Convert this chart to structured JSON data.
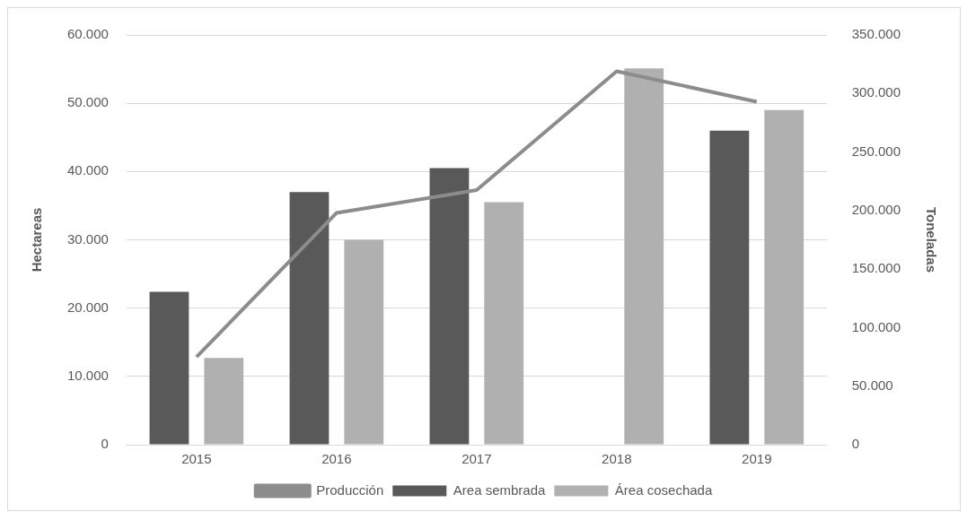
{
  "chart_data": {
    "type": "bar",
    "categories": [
      "2015",
      "2016",
      "2017",
      "2018",
      "2019"
    ],
    "ylabel": "Hectareas",
    "y2label": "Toneladas",
    "series": [
      {
        "name": "Area sembrada",
        "color": "#595959",
        "values": [
          22400,
          37000,
          40500,
          null,
          46000
        ]
      },
      {
        "name": "Área cosechada",
        "color": "#b0b0b0",
        "values": [
          12700,
          30000,
          35500,
          55100,
          49000
        ]
      },
      {
        "name": "Producción",
        "type": "line",
        "axis": "y2",
        "color": "#8c8c8c",
        "marker": "none",
        "values": [
          75000,
          198000,
          217500,
          319000,
          293000
        ]
      }
    ],
    "ylim": [
      0,
      60000
    ],
    "yticks": [
      {
        "value": 0,
        "label": "0"
      },
      {
        "value": 10000,
        "label": "10.000"
      },
      {
        "value": 20000,
        "label": "20.000"
      },
      {
        "value": 30000,
        "label": "30.000"
      },
      {
        "value": 40000,
        "label": "40.000"
      },
      {
        "value": 50000,
        "label": "50.000"
      },
      {
        "value": 60000,
        "label": "60.000"
      }
    ],
    "y2lim": [
      0,
      350000
    ],
    "y2ticks": [
      {
        "value": 0,
        "label": "0"
      },
      {
        "value": 50000,
        "label": "50.000"
      },
      {
        "value": 100000,
        "label": "100.000"
      },
      {
        "value": 150000,
        "label": "150.000"
      },
      {
        "value": 200000,
        "label": "200.000"
      },
      {
        "value": 250000,
        "label": "250.000"
      },
      {
        "value": 300000,
        "label": "300.000"
      },
      {
        "value": 350000,
        "label": "350.000"
      }
    ],
    "grid": "y",
    "legend": "bottom"
  }
}
